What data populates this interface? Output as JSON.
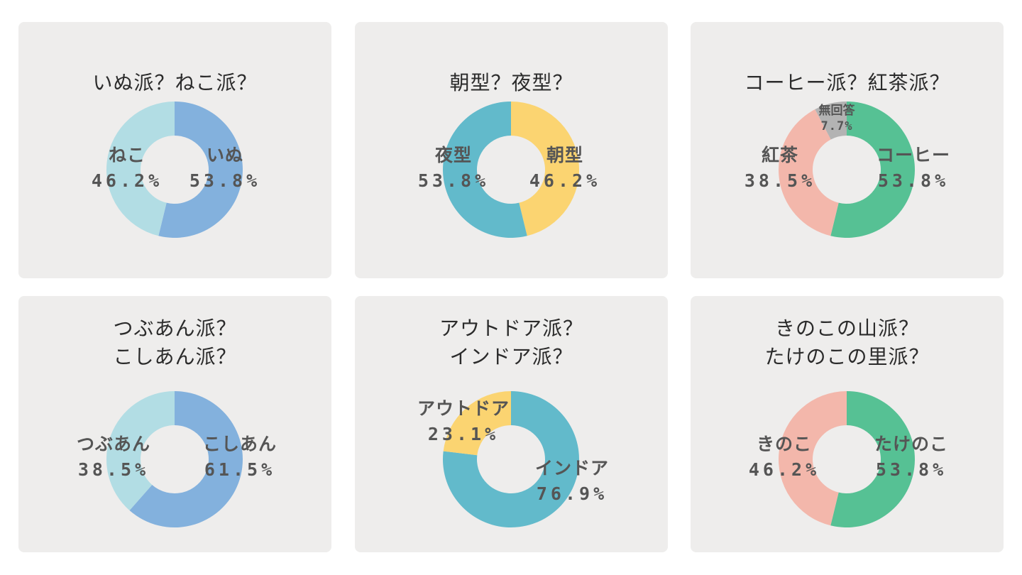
{
  "chart_data": [
    {
      "type": "pie",
      "title": [
        "いぬ派？ねこ派？"
      ],
      "categories": [
        "いぬ",
        "ねこ"
      ],
      "values": [
        53.8,
        46.2
      ],
      "labels": [
        "53.8%",
        "46.2%"
      ],
      "colors": [
        "#83b1dd",
        "#b2dde4"
      ]
    },
    {
      "type": "pie",
      "title": [
        "朝型？夜型？"
      ],
      "categories": [
        "朝型",
        "夜型"
      ],
      "values": [
        46.2,
        53.8
      ],
      "labels": [
        "46.2%",
        "53.8%"
      ],
      "colors": [
        "#fbd471",
        "#62bacb"
      ]
    },
    {
      "type": "pie",
      "title": [
        "コーヒー派？紅茶派？"
      ],
      "categories": [
        "コーヒー",
        "紅茶",
        "無回答"
      ],
      "values": [
        53.8,
        38.5,
        7.7
      ],
      "labels": [
        "53.8%",
        "38.5%",
        "7.7%"
      ],
      "colors": [
        "#56c194",
        "#f3b7ab",
        "#b3b3b3"
      ]
    },
    {
      "type": "pie",
      "title": [
        "つぶあん派？",
        "こしあん派？"
      ],
      "categories": [
        "こしあん",
        "つぶあん"
      ],
      "values": [
        61.5,
        38.5
      ],
      "labels": [
        "61.5%",
        "38.5%"
      ],
      "colors": [
        "#83b1dd",
        "#b2dde4"
      ]
    },
    {
      "type": "pie",
      "title": [
        "アウトドア派？",
        "インドア派？"
      ],
      "categories": [
        "インドア",
        "アウトドア"
      ],
      "values": [
        76.9,
        23.1
      ],
      "labels": [
        "76.9%",
        "23.1%"
      ],
      "colors": [
        "#62bacb",
        "#fbd471"
      ]
    },
    {
      "type": "pie",
      "title": [
        "きのこの山派？",
        "たけのこの里派？"
      ],
      "categories": [
        "たけのこ",
        "きのこ"
      ],
      "values": [
        53.8,
        46.2
      ],
      "labels": [
        "53.8%",
        "46.2%"
      ],
      "colors": [
        "#56c194",
        "#f3b7ab"
      ]
    }
  ]
}
